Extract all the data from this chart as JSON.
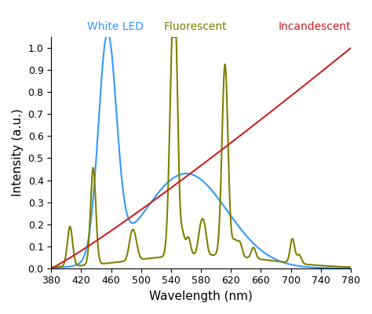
{
  "title": "",
  "xlabel": "Wavelength (nm)",
  "ylabel": "Intensity (a.u.)",
  "xlim": [
    380,
    780
  ],
  "ylim": [
    0,
    1.05
  ],
  "yticks": [
    0,
    0.1,
    0.2,
    0.3,
    0.4,
    0.5,
    0.6,
    0.7,
    0.8,
    0.9,
    1
  ],
  "xticks": [
    380,
    420,
    460,
    500,
    540,
    580,
    620,
    660,
    700,
    740,
    780
  ],
  "led_color": "#3399FF",
  "fluorescent_color": "#808000",
  "incandescent_color": "#CC2222",
  "led_label": "White LED",
  "fluorescent_label": "Fluorescent",
  "incandescent_label": "Incandescent",
  "led_label_color": "#3399FF",
  "fluorescent_label_color": "#808000",
  "incandescent_label_color": "#CC2222",
  "background_color": "#ffffff",
  "linewidth": 1.5
}
